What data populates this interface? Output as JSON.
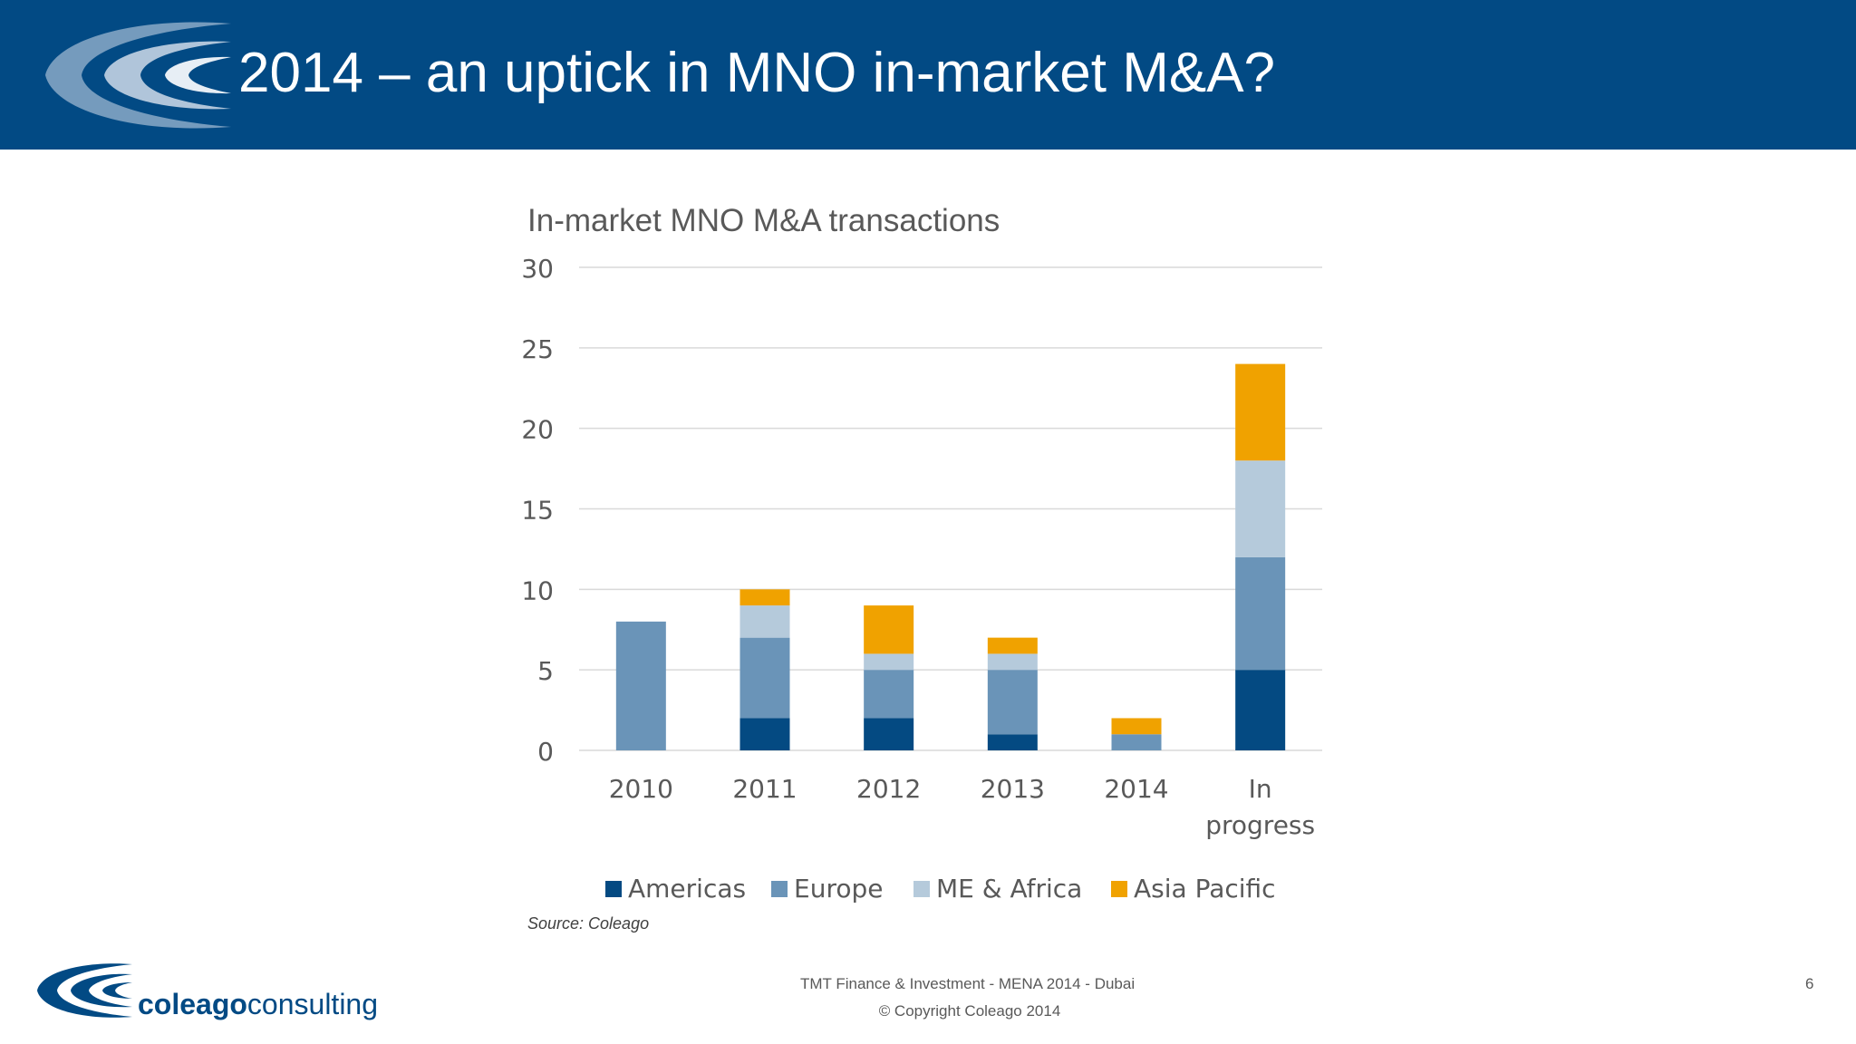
{
  "header": {
    "title": "2014 – an uptick in MNO in-market M&A?"
  },
  "colors": {
    "header_bg": "#024a84",
    "americas": "#044a82",
    "europe": "#6a94b8",
    "me_africa": "#b5cadb",
    "asia_pacific": "#f0a200"
  },
  "chart_data": {
    "type": "bar",
    "stacked": true,
    "title": "In-market MNO M&A transactions",
    "categories": [
      "2010",
      "2011",
      "2012",
      "2013",
      "2014",
      "In progress"
    ],
    "category_lines": [
      [
        "2010"
      ],
      [
        "2011"
      ],
      [
        "2012"
      ],
      [
        "2013"
      ],
      [
        "2014"
      ],
      [
        "In",
        "progress"
      ]
    ],
    "series": [
      {
        "name": "Americas",
        "color": "#044a82",
        "values": [
          0,
          2,
          2,
          1,
          0,
          5
        ]
      },
      {
        "name": "Europe",
        "color": "#6a94b8",
        "values": [
          8,
          5,
          3,
          4,
          1,
          7
        ]
      },
      {
        "name": "ME & Africa",
        "color": "#b5cadb",
        "values": [
          0,
          2,
          1,
          1,
          0,
          6
        ]
      },
      {
        "name": "Asia Pacific",
        "color": "#f0a200",
        "values": [
          0,
          1,
          3,
          1,
          1,
          6
        ]
      }
    ],
    "ylim": [
      0,
      30
    ],
    "yticks": [
      0,
      5,
      10,
      15,
      20,
      25,
      30
    ],
    "xlabel": "",
    "ylabel": "",
    "grid": true,
    "legend": "bottom"
  },
  "source_note": "Source: Coleago",
  "footer": {
    "brand_bold": "coleago",
    "brand_light": "consulting",
    "event": "TMT Finance & Investment - MENA 2014 - Dubai",
    "copyright": "© Copyright Coleago 2014",
    "page_number": "6"
  }
}
